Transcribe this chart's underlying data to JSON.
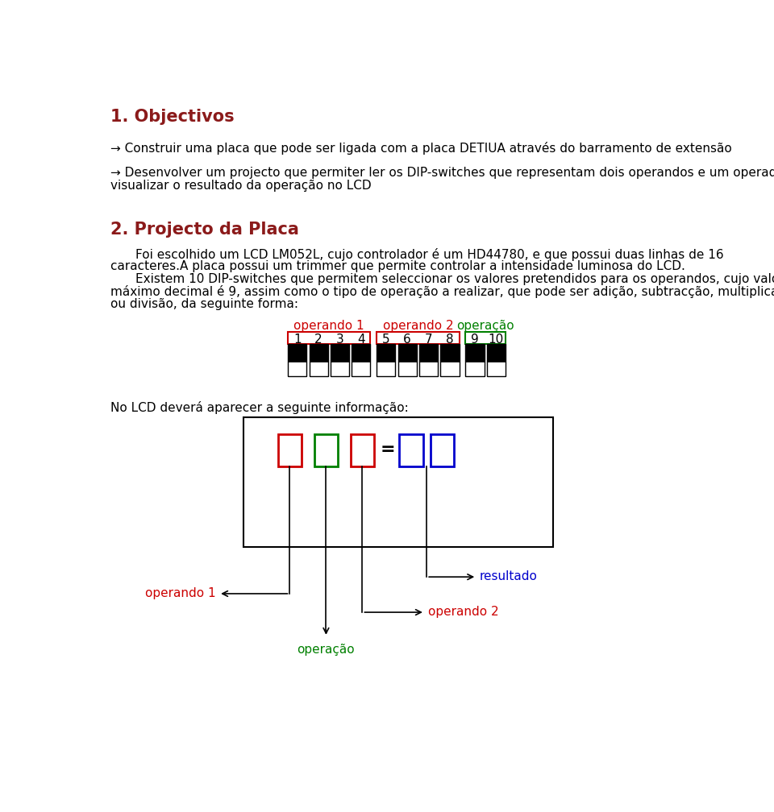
{
  "title1": "1. Objectivos",
  "title2": "2. Projecto da Placa",
  "title_color": "#8B1A1A",
  "body_color": "#000000",
  "arrow_char": "→",
  "line1": "Construir uma placa que pode ser ligada com a placa DETIUA através do barramento de extensão",
  "line2a": "Desenvolver um projecto que permiter ler os DIP-switches que representam dois operandos e um operador e",
  "line2b": "visualizar o resultado da operação no LCD",
  "para1a": "Foi escolhido um LCD LM052L, cujo controlador é um HD44780, e que possui duas linhas de 16",
  "para1b": "caracteres.A placa possui um trimmer que permite controlar a intensidade luminosa do LCD.",
  "para2a": "Existem 10 DIP-switches que permitem seleccionar os valores pretendidos para os operandos, cujo valor",
  "para2b": "máximo decimal é 9, assim como o tipo de operação a realizar, que pode ser adição, subtracção, multiplicação",
  "para2c": "ou divisão, da seguinte forma:",
  "label_operando1": "operando 1",
  "label_operando2": "operando 2",
  "label_operacao": "operação",
  "label_resultado": "resultado",
  "lcd_text": "No LCD deverá aparecer a seguinte informação:",
  "red_color": "#CC0000",
  "green_color": "#008000",
  "blue_color": "#0000CC",
  "bg_color": "#ffffff",
  "font_size_title": 15,
  "font_size_body": 11,
  "font_size_switch_num": 11
}
